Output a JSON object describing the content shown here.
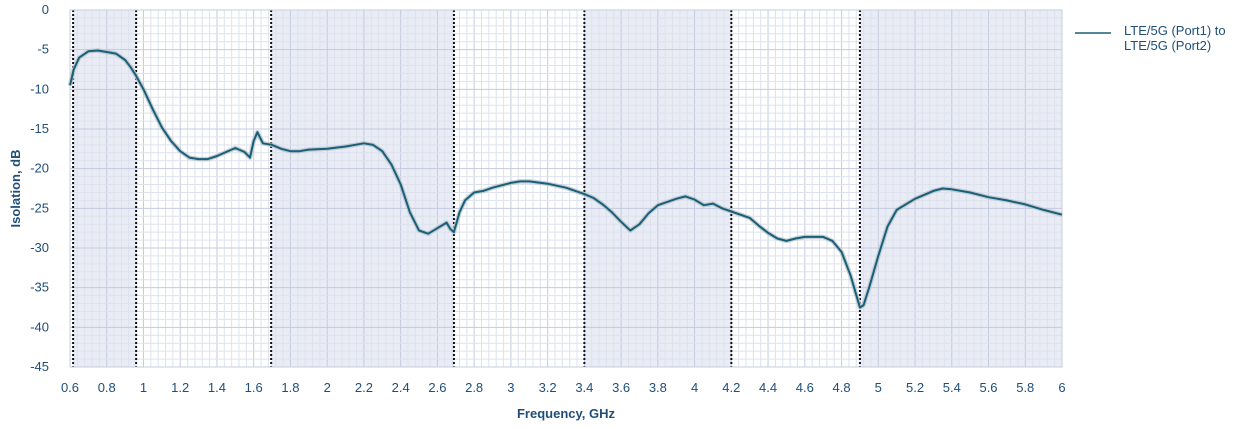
{
  "chart_data": {
    "type": "line",
    "title": "",
    "xlabel": "Frequency, GHz",
    "ylabel": "Isolation, dB",
    "xlim": [
      0.6,
      6
    ],
    "ylim": [
      -45,
      0
    ],
    "x_ticks": [
      "0.6",
      "0.8",
      "1",
      "1.2",
      "1.4",
      "1.6",
      "1.8",
      "2",
      "2.2",
      "2.4",
      "2.6",
      "2.8",
      "3",
      "3.2",
      "3.4",
      "3.6",
      "3.8",
      "4",
      "4.2",
      "4.4",
      "4.6",
      "4.8",
      "5",
      "5.2",
      "5.4",
      "5.6",
      "5.8",
      "6"
    ],
    "y_ticks": [
      "0",
      "-5",
      "-10",
      "-15",
      "-20",
      "-25",
      "-30",
      "-35",
      "-40",
      "-45"
    ],
    "grid": true,
    "legend_position": "right",
    "shaded_bands": [
      [
        0.617,
        0.96
      ],
      [
        1.695,
        2.69
      ],
      [
        3.4,
        4.2
      ],
      [
        4.9,
        6.0
      ]
    ],
    "band_edges": [
      0.617,
      0.96,
      1.695,
      2.69,
      3.4,
      4.2,
      4.9
    ],
    "series": [
      {
        "name": "LTE/5G (Port1) to LTE/5G (Port2)",
        "color": "#1a5f7a",
        "x": [
          0.6,
          0.62,
          0.65,
          0.7,
          0.75,
          0.8,
          0.85,
          0.9,
          0.93,
          0.96,
          1.0,
          1.05,
          1.1,
          1.15,
          1.2,
          1.25,
          1.3,
          1.35,
          1.4,
          1.45,
          1.5,
          1.55,
          1.58,
          1.6,
          1.62,
          1.65,
          1.7,
          1.75,
          1.8,
          1.85,
          1.9,
          2.0,
          2.1,
          2.2,
          2.25,
          2.3,
          2.35,
          2.4,
          2.45,
          2.5,
          2.55,
          2.6,
          2.65,
          2.67,
          2.69,
          2.72,
          2.75,
          2.8,
          2.85,
          2.9,
          3.0,
          3.05,
          3.1,
          3.2,
          3.3,
          3.4,
          3.45,
          3.5,
          3.55,
          3.6,
          3.65,
          3.7,
          3.75,
          3.8,
          3.9,
          3.95,
          4.0,
          4.05,
          4.1,
          4.15,
          4.2,
          4.3,
          4.35,
          4.4,
          4.45,
          4.5,
          4.55,
          4.6,
          4.7,
          4.75,
          4.8,
          4.85,
          4.9,
          4.92,
          4.95,
          5.0,
          5.05,
          5.1,
          5.2,
          5.3,
          5.35,
          5.4,
          5.5,
          5.6,
          5.7,
          5.8,
          5.9,
          6.0
        ],
        "y": [
          -9.5,
          -7.5,
          -6.0,
          -5.2,
          -5.1,
          -5.3,
          -5.5,
          -6.3,
          -7.2,
          -8.3,
          -10.0,
          -12.5,
          -14.8,
          -16.5,
          -17.8,
          -18.6,
          -18.8,
          -18.8,
          -18.4,
          -17.9,
          -17.4,
          -17.9,
          -18.6,
          -16.5,
          -15.4,
          -16.8,
          -17.0,
          -17.5,
          -17.8,
          -17.8,
          -17.6,
          -17.5,
          -17.2,
          -16.8,
          -17.0,
          -17.8,
          -19.5,
          -22.0,
          -25.5,
          -27.8,
          -28.2,
          -27.5,
          -26.8,
          -27.6,
          -28.0,
          -25.5,
          -24.0,
          -23.0,
          -22.8,
          -22.4,
          -21.8,
          -21.6,
          -21.6,
          -21.9,
          -22.4,
          -23.2,
          -23.7,
          -24.5,
          -25.5,
          -26.7,
          -27.8,
          -27.0,
          -25.6,
          -24.6,
          -23.8,
          -23.5,
          -23.9,
          -24.6,
          -24.4,
          -25.0,
          -25.4,
          -26.2,
          -27.2,
          -28.1,
          -28.8,
          -29.1,
          -28.8,
          -28.6,
          -28.6,
          -29.1,
          -30.5,
          -33.5,
          -37.5,
          -37.2,
          -35.0,
          -31.0,
          -27.3,
          -25.2,
          -23.8,
          -22.8,
          -22.5,
          -22.6,
          -23.0,
          -23.6,
          -24.0,
          -24.5,
          -25.2,
          -25.8
        ]
      }
    ]
  }
}
